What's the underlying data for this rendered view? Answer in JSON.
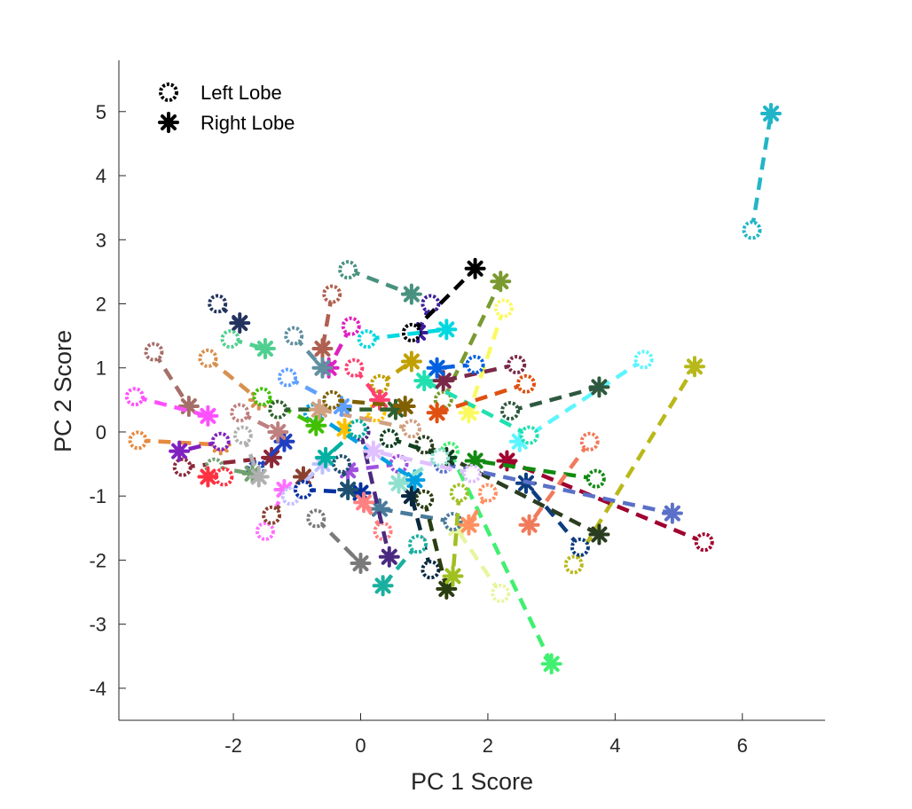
{
  "chart_data": {
    "type": "scatter",
    "xlabel": "PC 1 Score",
    "ylabel": "PC 2 Score",
    "xlim": [
      -3.8,
      7.3
    ],
    "ylim": [
      -4.5,
      5.8
    ],
    "xticks": [
      -2,
      0,
      2,
      4,
      6
    ],
    "yticks": [
      -4,
      -3,
      -2,
      -1,
      0,
      1,
      2,
      3,
      4,
      5
    ],
    "xtick_labels": [
      "-2",
      "0",
      "2",
      "4",
      "6"
    ],
    "ytick_labels": [
      "-4",
      "-3",
      "-2",
      "-1",
      "0",
      "1",
      "2",
      "3",
      "4",
      "5"
    ],
    "grid": false,
    "legend": {
      "placement": "top-left",
      "entries": [
        {
          "label": "Left Lobe",
          "marker": "circle"
        },
        {
          "label": "Right Lobe",
          "marker": "asterisk"
        }
      ]
    },
    "series": [
      {
        "marker_left": "circle",
        "marker_right": "asterisk"
      }
    ],
    "pairs": [
      {
        "left": [
          6.15,
          3.15
        ],
        "right": [
          6.45,
          4.97
        ],
        "color": "#22b5c8"
      },
      {
        "left": [
          3.35,
          -2.07
        ],
        "right": [
          5.25,
          1.02
        ],
        "color": "#b8b81a"
      },
      {
        "left": [
          5.4,
          -1.72
        ],
        "right": [
          2.3,
          -0.45
        ],
        "color": "#a0002e"
      },
      {
        "left": [
          4.45,
          1.13
        ],
        "right": [
          2.5,
          -0.15
        ],
        "color": "#5cf5ff"
      },
      {
        "left": [
          3.7,
          -0.73
        ],
        "right": [
          1.8,
          -0.45
        ],
        "color": "#108a10"
      },
      {
        "left": [
          3.45,
          -1.8
        ],
        "right": [
          2.6,
          -0.8
        ],
        "color": "#0d3d80"
      },
      {
        "left": [
          2.25,
          1.93
        ],
        "right": [
          1.7,
          0.3
        ],
        "color": "#fafa60"
      },
      {
        "left": [
          2.2,
          -2.52
        ],
        "right": [
          1.5,
          -1.5
        ],
        "color": "#e8f5a0"
      },
      {
        "left": [
          2.35,
          0.33
        ],
        "right": [
          3.75,
          0.7
        ],
        "color": "#2e5940"
      },
      {
        "left": [
          1.4,
          -0.3
        ],
        "right": [
          3.0,
          -3.62
        ],
        "color": "#40f070"
      },
      {
        "left": [
          1.0,
          -0.2
        ],
        "right": [
          3.75,
          -1.6
        ],
        "color": "#2b3d20"
      },
      {
        "left": [
          1.3,
          -0.5
        ],
        "right": [
          4.9,
          -1.27
        ],
        "color": "#5a70c8"
      },
      {
        "left": [
          -0.2,
          2.53
        ],
        "right": [
          0.8,
          2.15
        ],
        "color": "#48917e"
      },
      {
        "left": [
          1.1,
          2.0
        ],
        "right": [
          0.9,
          1.55
        ],
        "color": "#3d1f99"
      },
      {
        "left": [
          0.8,
          1.55
        ],
        "right": [
          1.8,
          2.55
        ],
        "color": "#000000"
      },
      {
        "left": [
          0.1,
          1.45
        ],
        "right": [
          1.35,
          1.6
        ],
        "color": "#00d8e0"
      },
      {
        "left": [
          1.3,
          0.5
        ],
        "right": [
          2.2,
          2.35
        ],
        "color": "#7a9a30"
      },
      {
        "left": [
          -2.25,
          2.0
        ],
        "right": [
          -1.9,
          1.7
        ],
        "color": "#23335e"
      },
      {
        "left": [
          -3.25,
          1.25
        ],
        "right": [
          -2.7,
          0.4
        ],
        "color": "#a66e69"
      },
      {
        "left": [
          -3.5,
          -0.13
        ],
        "right": [
          -2.2,
          -0.2
        ],
        "color": "#e68a40"
      },
      {
        "left": [
          -2.8,
          -0.55
        ],
        "right": [
          -1.4,
          -0.4
        ],
        "color": "#8b2838"
      },
      {
        "left": [
          -0.7,
          -1.35
        ],
        "right": [
          0.0,
          -2.05
        ],
        "color": "#7a7a7a"
      },
      {
        "left": [
          1.45,
          -1.4
        ],
        "right": [
          0.3,
          -1.2
        ],
        "color": "#4a7a9a"
      },
      {
        "left": [
          1.1,
          -2.15
        ],
        "right": [
          0.8,
          -1.0
        ],
        "color": "#0a2840"
      },
      {
        "left": [
          0.9,
          -1.75
        ],
        "right": [
          0.35,
          -2.4
        ],
        "color": "#1ab0a0"
      },
      {
        "left": [
          2.0,
          -0.95
        ],
        "right": [
          1.7,
          -1.45
        ],
        "color": "#ff9060"
      },
      {
        "left": [
          2.65,
          -0.05
        ],
        "right": [
          1.0,
          0.8
        ],
        "color": "#20e0b0"
      },
      {
        "left": [
          3.6,
          -0.15
        ],
        "right": [
          2.65,
          -1.45
        ],
        "color": "#f07a5a"
      },
      {
        "left": [
          2.6,
          0.75
        ],
        "right": [
          1.2,
          0.3
        ],
        "color": "#e05010"
      },
      {
        "left": [
          2.45,
          1.05
        ],
        "right": [
          1.3,
          0.8
        ],
        "color": "#7a2848"
      },
      {
        "left": [
          1.8,
          1.05
        ],
        "right": [
          1.2,
          1.0
        ],
        "color": "#0060e0"
      },
      {
        "left": [
          -0.15,
          1.65
        ],
        "right": [
          -0.5,
          1.0
        ],
        "color": "#e020c0"
      },
      {
        "left": [
          -0.45,
          2.15
        ],
        "right": [
          -0.6,
          1.3
        ],
        "color": "#b06050"
      },
      {
        "left": [
          -3.55,
          0.55
        ],
        "right": [
          -2.4,
          0.25
        ],
        "color": "#ff50ff"
      },
      {
        "left": [
          -2.4,
          1.15
        ],
        "right": [
          -1.6,
          0.5
        ],
        "color": "#d89050"
      },
      {
        "left": [
          -1.05,
          1.5
        ],
        "right": [
          -0.6,
          1.0
        ],
        "color": "#6090a0"
      },
      {
        "left": [
          -2.05,
          1.45
        ],
        "right": [
          -1.5,
          1.3
        ],
        "color": "#50d090"
      },
      {
        "left": [
          -1.5,
          -1.55
        ],
        "right": [
          -1.2,
          -0.9
        ],
        "color": "#ff70ff"
      },
      {
        "left": [
          -1.4,
          -1.3
        ],
        "right": [
          -0.9,
          -0.7
        ],
        "color": "#8a4030"
      },
      {
        "left": [
          -1.1,
          -1.0
        ],
        "right": [
          -0.6,
          -0.5
        ],
        "color": "#c0c0ff"
      },
      {
        "left": [
          -0.9,
          -0.9
        ],
        "right": [
          0.0,
          -0.95
        ],
        "color": "#0030a0"
      },
      {
        "left": [
          -1.65,
          -0.6
        ],
        "right": [
          -1.2,
          -0.15
        ],
        "color": "#2040c0"
      },
      {
        "left": [
          -2.3,
          -0.55
        ],
        "right": [
          -1.7,
          -0.65
        ],
        "color": "#70a070"
      },
      {
        "left": [
          -2.15,
          -0.7
        ],
        "right": [
          -2.4,
          -0.7
        ],
        "color": "#ff3040"
      },
      {
        "left": [
          -2.2,
          -0.15
        ],
        "right": [
          -2.85,
          -0.3
        ],
        "color": "#8020c0"
      },
      {
        "left": [
          0.3,
          0.75
        ],
        "right": [
          0.8,
          1.1
        ],
        "color": "#c0a000"
      },
      {
        "left": [
          0.45,
          -0.1
        ],
        "right": [
          1.35,
          -0.4
        ],
        "color": "#104020"
      },
      {
        "left": [
          0.6,
          -0.5
        ],
        "right": [
          -0.2,
          -0.6
        ],
        "color": "#a050e0"
      },
      {
        "left": [
          0.25,
          0.3
        ],
        "right": [
          -0.25,
          0.05
        ],
        "color": "#ffc000"
      },
      {
        "left": [
          -0.1,
          1.0
        ],
        "right": [
          0.3,
          0.5
        ],
        "color": "#ff4070"
      },
      {
        "left": [
          0.35,
          -1.55
        ],
        "right": [
          0.05,
          -1.1
        ],
        "color": "#ff8080"
      },
      {
        "left": [
          1.0,
          -1.05
        ],
        "right": [
          1.35,
          -2.45
        ],
        "color": "#2a3d10"
      },
      {
        "left": [
          1.55,
          -0.95
        ],
        "right": [
          1.45,
          -2.25
        ],
        "color": "#a0c020"
      },
      {
        "left": [
          0.0,
          0.0
        ],
        "right": [
          0.45,
          -1.95
        ],
        "color": "#4a2a80"
      },
      {
        "left": [
          -1.85,
          -0.05
        ],
        "right": [
          -1.6,
          -0.7
        ],
        "color": "#b0b0b0"
      },
      {
        "left": [
          -0.75,
          0.3
        ],
        "right": [
          0.85,
          -0.75
        ],
        "color": "#00a0e0"
      },
      {
        "left": [
          -1.55,
          0.55
        ],
        "right": [
          -0.7,
          0.1
        ],
        "color": "#40c000"
      },
      {
        "left": [
          -1.3,
          0.35
        ],
        "right": [
          0.55,
          0.35
        ],
        "color": "#306030"
      },
      {
        "left": [
          -0.3,
          -0.5
        ],
        "right": [
          -0.2,
          -0.9
        ],
        "color": "#205070"
      },
      {
        "left": [
          1.25,
          -0.4
        ],
        "right": [
          0.6,
          -0.8
        ],
        "color": "#90e0d0"
      },
      {
        "left": [
          0.8,
          0.05
        ],
        "right": [
          -0.65,
          0.35
        ],
        "color": "#d0a080"
      },
      {
        "left": [
          1.75,
          -0.65
        ],
        "right": [
          0.2,
          -0.3
        ],
        "color": "#e0c0ff"
      },
      {
        "left": [
          -1.15,
          0.85
        ],
        "right": [
          -0.3,
          0.4
        ],
        "color": "#60a0ff"
      },
      {
        "left": [
          -0.45,
          0.5
        ],
        "right": [
          0.7,
          0.4
        ],
        "color": "#806000"
      },
      {
        "left": [
          -1.9,
          0.3
        ],
        "right": [
          -1.3,
          0.0
        ],
        "color": "#c08080"
      },
      {
        "left": [
          -0.05,
          0.05
        ],
        "right": [
          -0.55,
          -0.4
        ],
        "color": "#00b0a0"
      }
    ]
  }
}
